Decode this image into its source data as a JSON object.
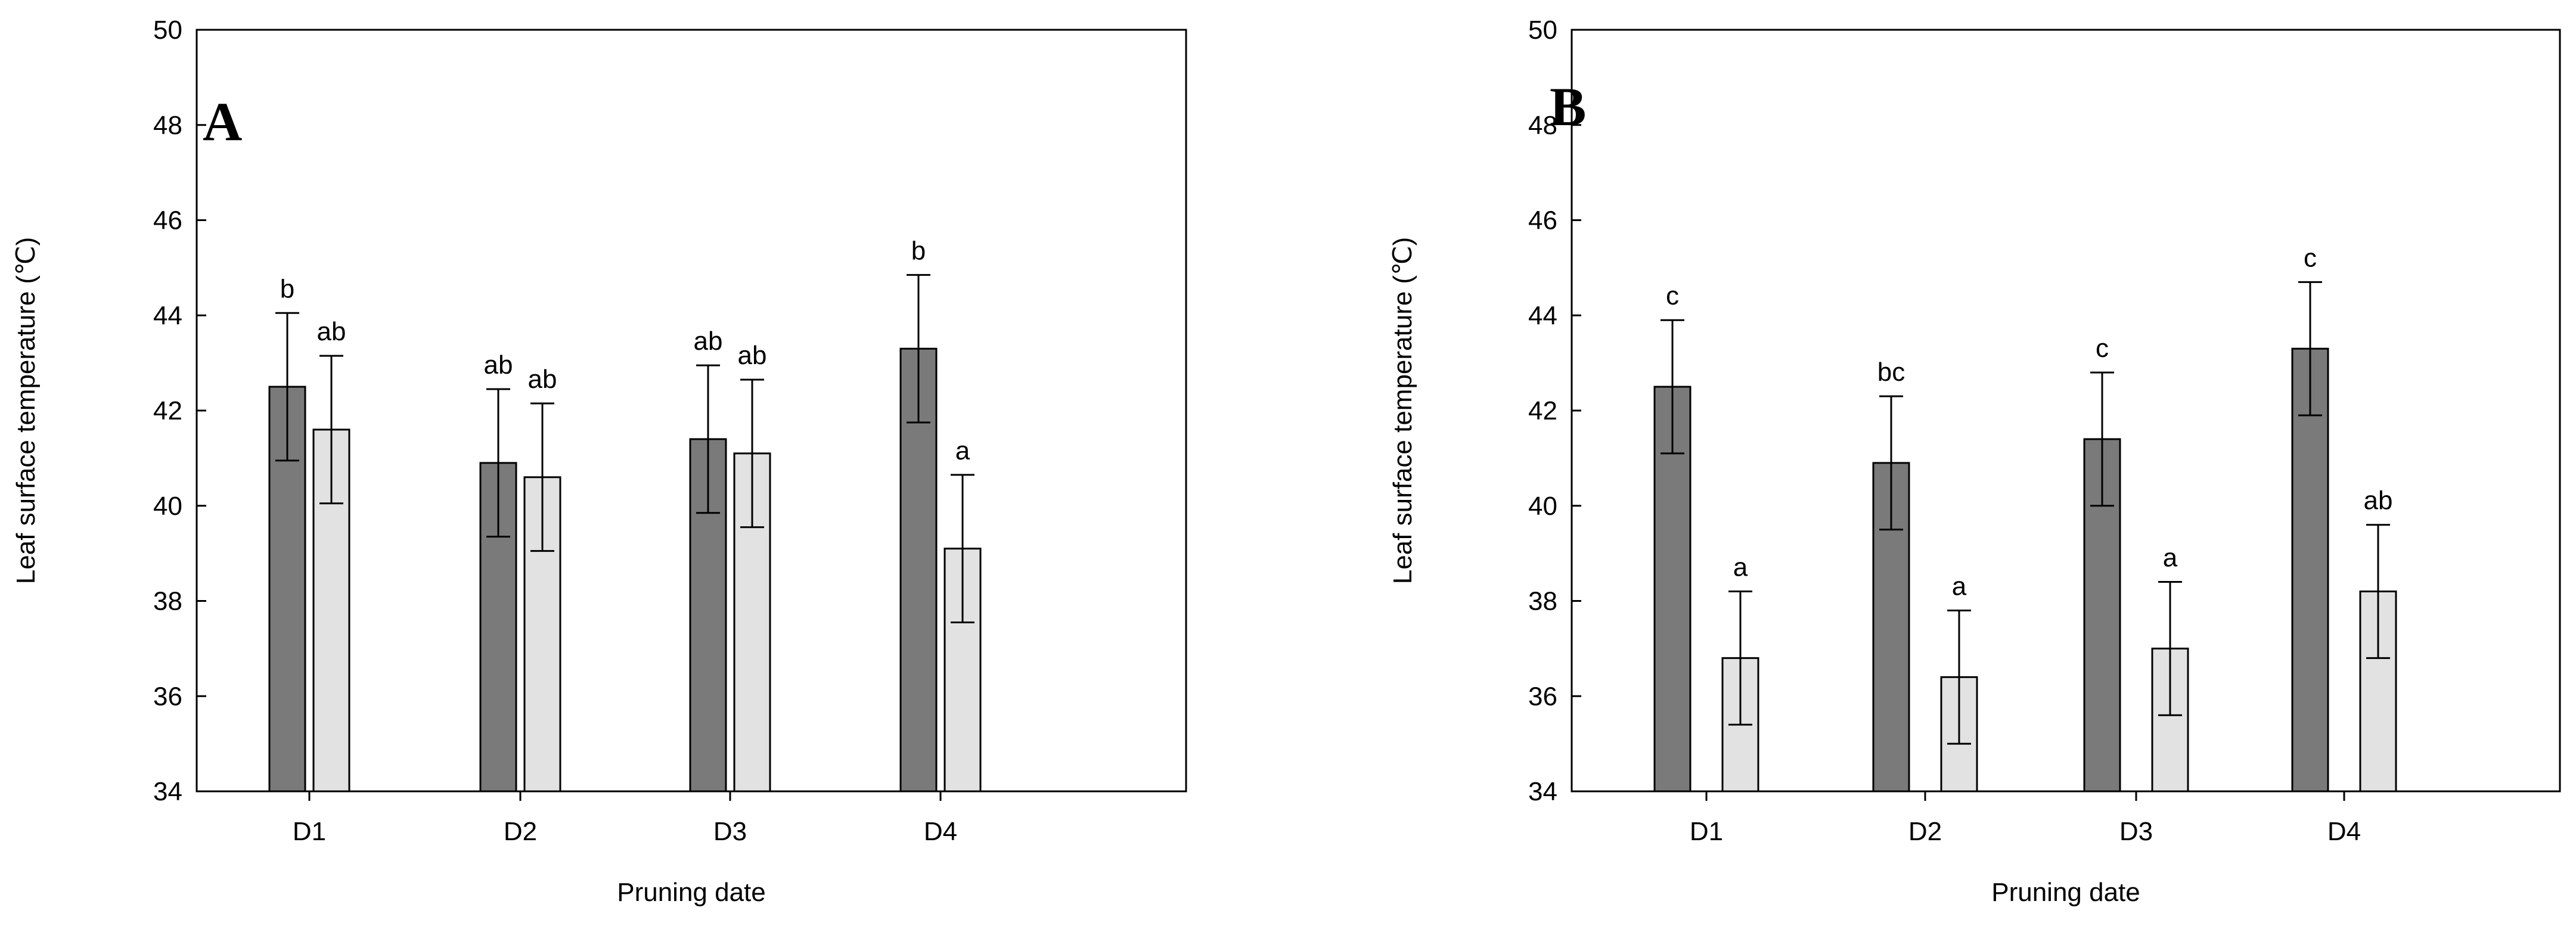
{
  "chart_data": [
    {
      "type": "bar",
      "panel_label": "A",
      "categories": [
        "D1",
        "D2",
        "D3",
        "D4"
      ],
      "xlabel": "Pruning date",
      "ylabel": "Leaf surface temperature (℃)",
      "ylim": [
        34,
        50
      ],
      "yticks": [
        "34",
        "36",
        "38",
        "40",
        "42",
        "44",
        "46",
        "48",
        "50"
      ],
      "grid": false,
      "series": [
        {
          "color": "#7a7a7a",
          "values": [
            42.5,
            40.9,
            41.4,
            43.3
          ],
          "errors": [
            1.55,
            1.55,
            1.55,
            1.55
          ],
          "letters": [
            "b",
            "ab",
            "ab",
            "b"
          ]
        },
        {
          "color": "#e2e2e2",
          "values": [
            41.6,
            40.6,
            41.1,
            39.1
          ],
          "errors": [
            1.55,
            1.55,
            1.55,
            1.55
          ],
          "letters": [
            "ab",
            "ab",
            "ab",
            "a"
          ]
        }
      ]
    },
    {
      "type": "bar",
      "panel_label": "B",
      "categories": [
        "D1",
        "D2",
        "D3",
        "D4"
      ],
      "xlabel": "Pruning date",
      "ylabel": "Leaf surface temperature (℃)",
      "ylim": [
        34,
        50
      ],
      "yticks": [
        "34",
        "36",
        "38",
        "40",
        "42",
        "44",
        "46",
        "48",
        "50"
      ],
      "grid": false,
      "series": [
        {
          "color": "#7a7a7a",
          "values": [
            42.5,
            40.9,
            41.4,
            43.3
          ],
          "errors": [
            1.4,
            1.4,
            1.4,
            1.4
          ],
          "letters": [
            "c",
            "bc",
            "c",
            "c"
          ]
        },
        {
          "color": "#e2e2e2",
          "values": [
            36.8,
            36.4,
            37.0,
            38.2
          ],
          "errors": [
            1.4,
            1.4,
            1.4,
            1.4
          ],
          "letters": [
            "a",
            "a",
            "a",
            "ab"
          ]
        }
      ]
    }
  ]
}
